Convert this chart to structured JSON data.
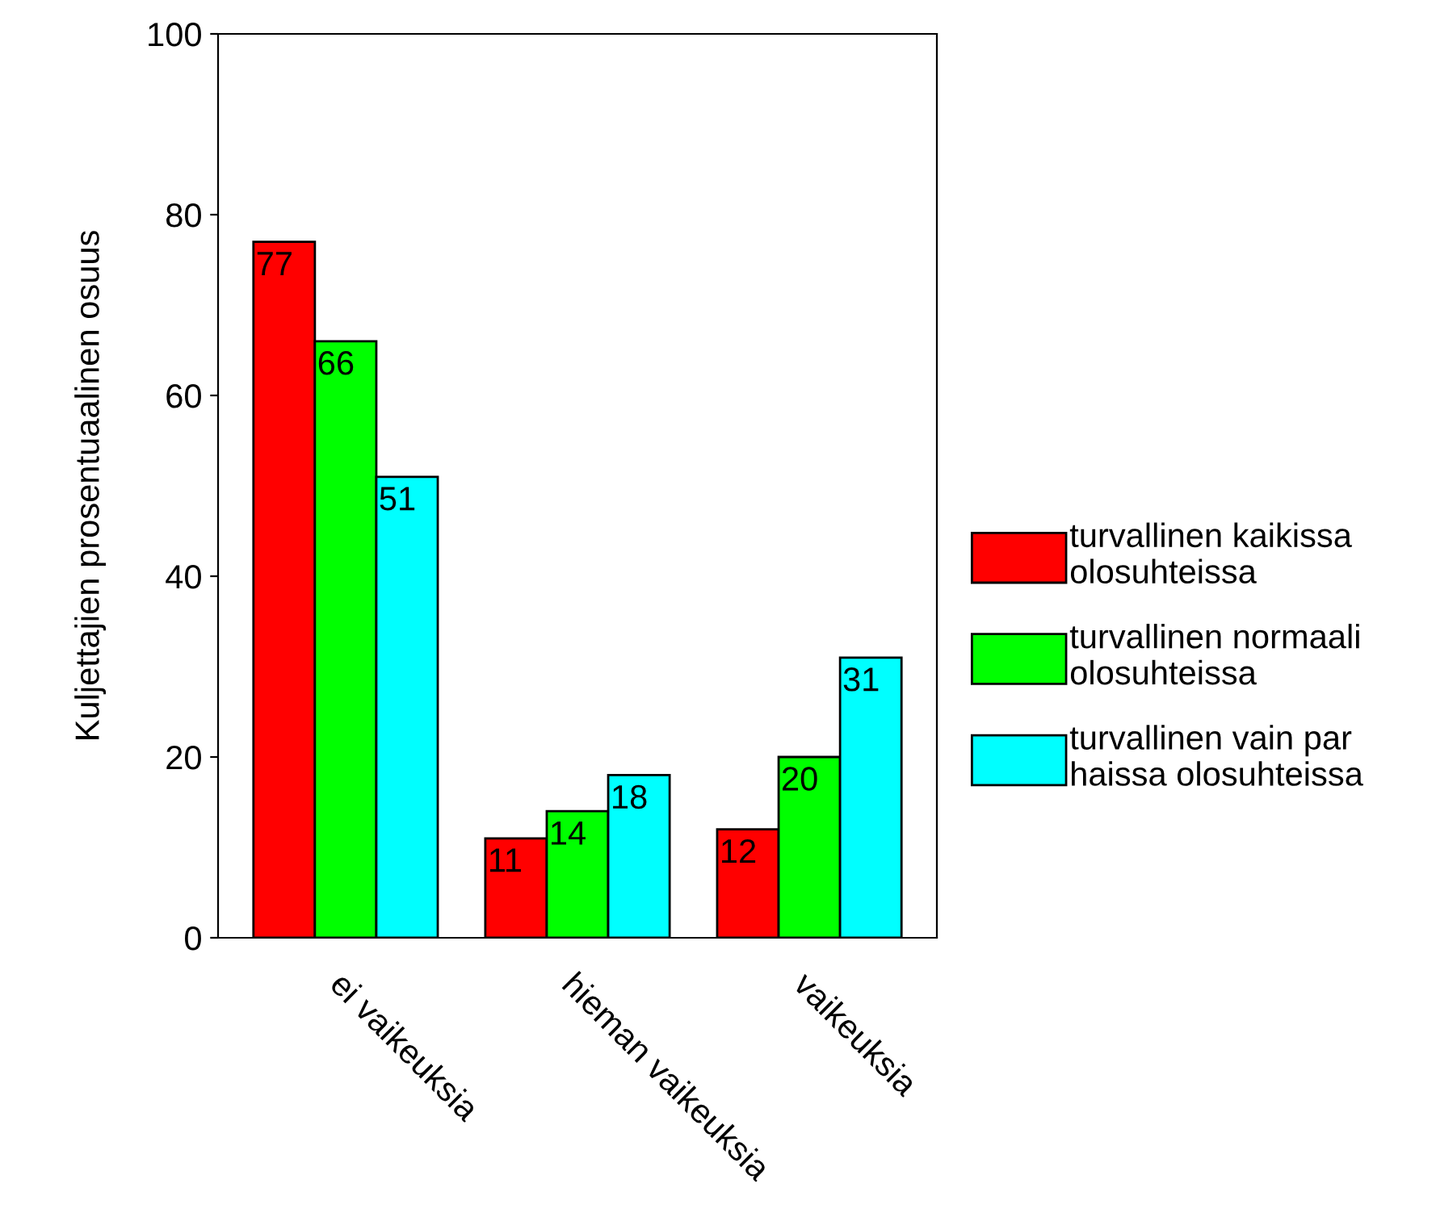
{
  "chart_data": {
    "type": "bar",
    "ylabel": "Kuljettajien prosentuaalinen osuus",
    "categories": [
      "ei vaikeuksia",
      "hieman vaikeuksia",
      "vaikeuksia"
    ],
    "series": [
      {
        "name": "turvallinen kaikissa\nolosuhteissa",
        "color": "#ff0000",
        "values": [
          77,
          11,
          12
        ]
      },
      {
        "name": "turvallinen normaali\nolosuhteissa",
        "color": "#00ff00",
        "values": [
          66,
          14,
          20
        ]
      },
      {
        "name": "turvallinen vain par\nhaissa olosuhteissa",
        "color": "#00ffff",
        "values": [
          51,
          18,
          31
        ]
      }
    ],
    "ylim": [
      0,
      100
    ],
    "yticks": [
      0,
      20,
      40,
      60,
      80,
      100
    ],
    "grid": false,
    "legend": "right",
    "data_labels": true
  }
}
